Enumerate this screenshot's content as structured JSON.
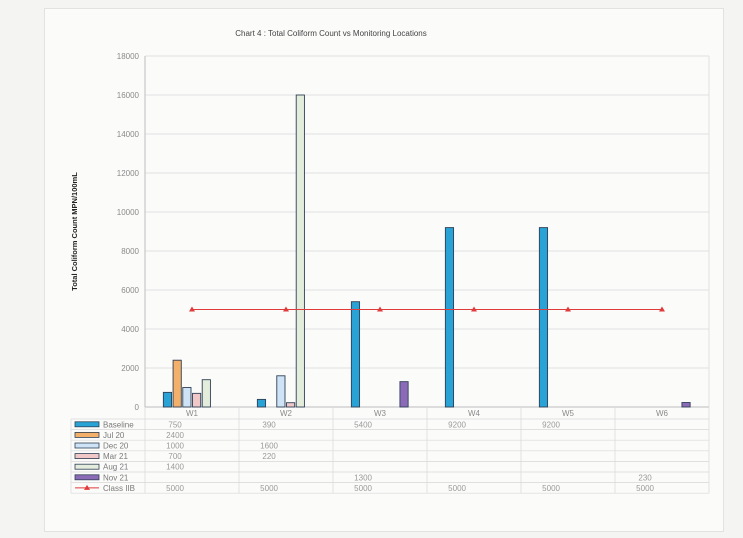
{
  "chart_data": {
    "type": "bar",
    "title": "Chart 4 : Total Coliform Count vs Monitoring Locations",
    "ylabel": "Total Coliform Count MPN/100mL",
    "xlabel": "",
    "ylim": [
      0,
      18000
    ],
    "yticks": [
      "0",
      "2000",
      "4000",
      "6000",
      "8000",
      "10000",
      "12000",
      "14000",
      "16000",
      "18000"
    ],
    "categories": [
      "W1",
      "W2",
      "W3",
      "W4",
      "W5",
      "W6"
    ],
    "grid": true,
    "legend": "data-table-left",
    "series": [
      {
        "name": "Baseline",
        "color": "#29a3d6",
        "values": [
          750,
          390,
          5400,
          9200,
          9200,
          null
        ],
        "labels": [
          "750",
          "390",
          "5400",
          "9200",
          "9200",
          ""
        ]
      },
      {
        "name": "Jul 20",
        "color": "#f2b06a",
        "values": [
          2400,
          null,
          null,
          null,
          null,
          null
        ],
        "labels": [
          "2400",
          "",
          "",
          "",
          "",
          ""
        ]
      },
      {
        "name": "Dec 20",
        "color": "#cfe3f6",
        "values": [
          1000,
          1600,
          null,
          null,
          null,
          null
        ],
        "labels": [
          "1000",
          "1600",
          "",
          "",
          "",
          ""
        ]
      },
      {
        "name": "Mar 21",
        "color": "#f0c8c8",
        "values": [
          700,
          220,
          null,
          null,
          null,
          null
        ],
        "labels": [
          "700",
          "220",
          "",
          "",
          "",
          ""
        ]
      },
      {
        "name": "Aug 21",
        "color": "#e4ecdc",
        "values": [
          1400,
          16000,
          null,
          null,
          null,
          null
        ],
        "labels": [
          "1400",
          "",
          "",
          "",
          "",
          ""
        ]
      },
      {
        "name": "Nov 21",
        "color": "#8b6bb8",
        "values": [
          null,
          null,
          1300,
          null,
          null,
          230
        ],
        "labels": [
          "",
          "",
          "1300",
          "",
          "",
          "230"
        ]
      },
      {
        "name": "Class IIB",
        "color": "#e03a3a",
        "kind": "line",
        "values": [
          5000,
          5000,
          5000,
          5000,
          5000,
          5000
        ],
        "labels": [
          "5000",
          "5000",
          "5000",
          "5000",
          "5000",
          "5000"
        ]
      }
    ]
  }
}
